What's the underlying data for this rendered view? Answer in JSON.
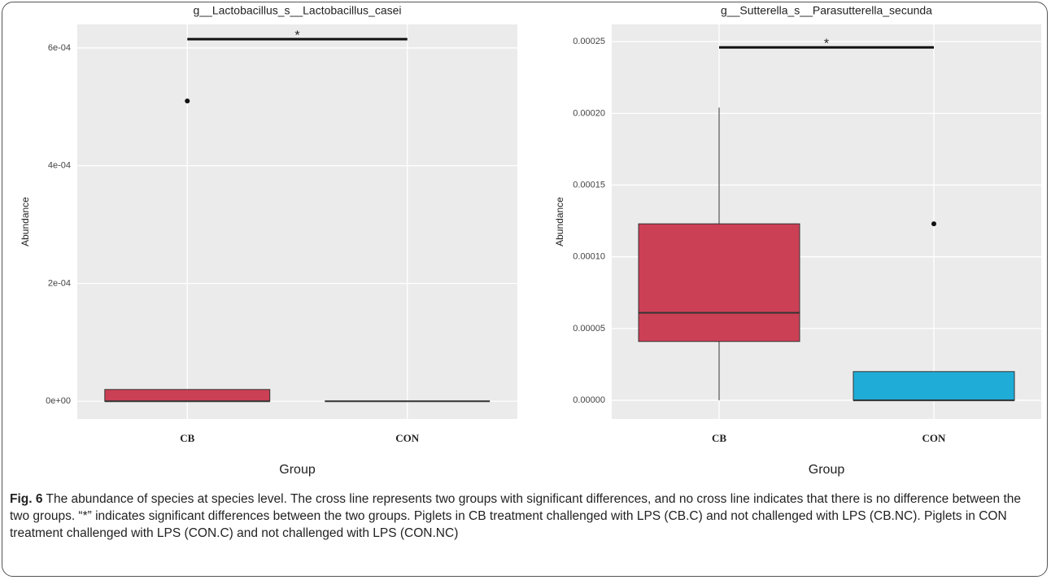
{
  "chart_data": [
    {
      "type": "box",
      "title": "g__Lactobacillus_s__Lactobacillus_casei",
      "x_label": "Group",
      "y_label": "Abundance",
      "categories": [
        "CB",
        "CON"
      ],
      "boxes": [
        {
          "color": "#cc4055",
          "whisker_low": 0,
          "q1": 0,
          "median": 0,
          "q3": 2e-05,
          "whisker_high": 2e-05,
          "outliers": [
            0.00051
          ]
        },
        {
          "color": "#1fadd8",
          "whisker_low": 0,
          "q1": 0,
          "median": 0,
          "q3": 0,
          "whisker_high": 0,
          "outliers": []
        }
      ],
      "significance": {
        "y": 0.000615,
        "label": "*"
      },
      "ylim": [
        -3e-05,
        0.00064
      ],
      "yticks": [
        {
          "value": 0,
          "label": "0e+00"
        },
        {
          "value": 0.0002,
          "label": "2e-04"
        },
        {
          "value": 0.0004,
          "label": "4e-04"
        },
        {
          "value": 0.0006,
          "label": "6e-04"
        }
      ],
      "grid": true
    },
    {
      "type": "box",
      "title": "g__Sutterella_s__Parasutterella_secunda",
      "x_label": "Group",
      "y_label": "Abundance",
      "categories": [
        "CB",
        "CON"
      ],
      "boxes": [
        {
          "color": "#cc4055",
          "whisker_low": 0,
          "q1": 4.1e-05,
          "median": 6.1e-05,
          "q3": 0.000123,
          "whisker_high": 0.000204,
          "outliers": []
        },
        {
          "color": "#1fadd8",
          "whisker_low": 0,
          "q1": 0,
          "median": 0,
          "q3": 2e-05,
          "whisker_high": 2e-05,
          "outliers": [
            0.000123
          ]
        }
      ],
      "significance": {
        "y": 0.000246,
        "label": "*"
      },
      "ylim": [
        -1.3e-05,
        0.000262
      ],
      "yticks": [
        {
          "value": 0,
          "label": "0.00000"
        },
        {
          "value": 5e-05,
          "label": "0.00005"
        },
        {
          "value": 0.0001,
          "label": "0.00010"
        },
        {
          "value": 0.00015,
          "label": "0.00015"
        },
        {
          "value": 0.0002,
          "label": "0.00020"
        },
        {
          "value": 0.00025,
          "label": "0.00025"
        }
      ],
      "grid": true
    }
  ],
  "caption": {
    "label": "Fig. 6",
    "text": "The abundance of species at species level. The cross line represents two groups with significant differences, and no cross line indicates that there is no difference between the two groups. “*” indicates significant differences between the two groups. Piglets in CB treatment challenged with LPS (CB.C) and not challenged with LPS (CB.NC). Piglets in CON treatment challenged with LPS (CON.C) and not challenged with LPS (CON.NC)"
  }
}
